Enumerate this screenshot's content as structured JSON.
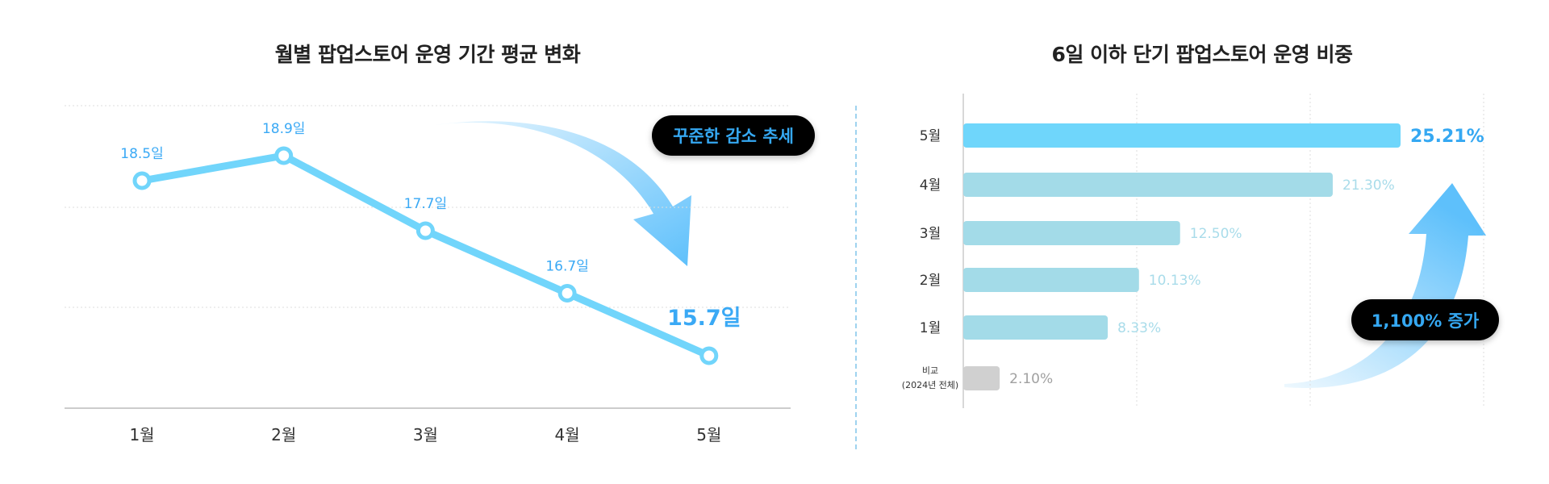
{
  "chart_data": [
    {
      "type": "line",
      "title": "월별 팝업스토어 운영 기간 평균 변화",
      "categories": [
        "1월",
        "2월",
        "3월",
        "4월",
        "5월"
      ],
      "values": [
        18.5,
        18.9,
        17.7,
        16.7,
        15.7
      ],
      "data_labels": [
        "18.5일",
        "18.9일",
        "17.7일",
        "16.7일",
        "15.7일"
      ],
      "annotation": "꾸준한 감소 추세",
      "grid": true,
      "colors": {
        "line": "#71d5fb",
        "label": "#3aa9f5"
      }
    },
    {
      "type": "bar",
      "orientation": "horizontal",
      "title": "6일 이하 단기 팝업스토어 운영 비중",
      "categories": [
        "5월",
        "4월",
        "3월",
        "2월",
        "1월",
        "비교\n(2024년 전체)"
      ],
      "category_lines": [
        [
          "5월"
        ],
        [
          "4월"
        ],
        [
          "3월"
        ],
        [
          "2월"
        ],
        [
          "1월"
        ],
        [
          "비교",
          "(2024년 전체)"
        ]
      ],
      "values": [
        25.21,
        21.3,
        12.5,
        10.13,
        8.33,
        2.1
      ],
      "data_labels": [
        "25.21%",
        "21.30%",
        "12.50%",
        "10.13%",
        "8.33%",
        "2.10%"
      ],
      "xlim": [
        0,
        30
      ],
      "annotation": "1,100% 증가",
      "grid": true,
      "colors": {
        "highlight": "#6fd6fb",
        "normal": "#a3dbe8",
        "comparison": "#d0d0d0",
        "highlight_label": "#35a8f2",
        "normal_label": "#a9dcea",
        "comparison_label": "#a0a0a0"
      }
    }
  ]
}
